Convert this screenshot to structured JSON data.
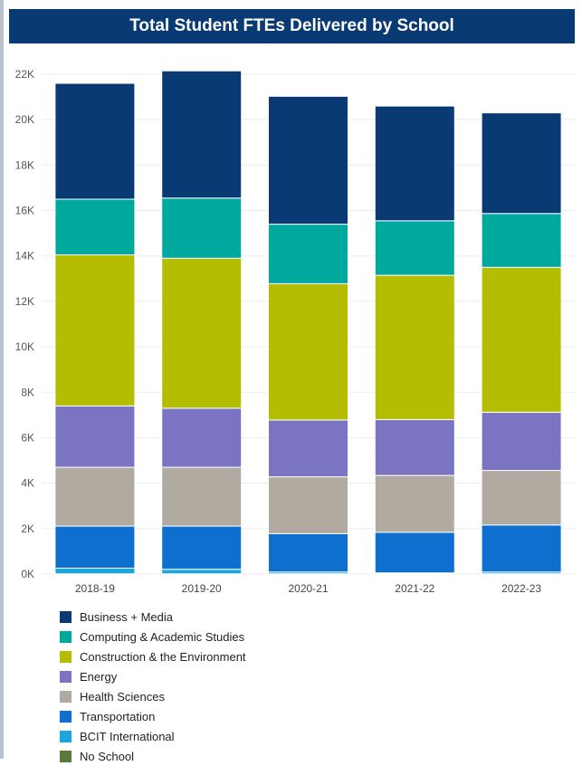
{
  "header": {
    "title": "Total Student FTEs Delivered by School"
  },
  "chart_data": {
    "type": "bar",
    "stacked": true,
    "categories": [
      "2018-19",
      "2019-20",
      "2020-21",
      "2021-22",
      "2022-23"
    ],
    "ylim": [
      0,
      22000
    ],
    "y_ticks": [
      0,
      2000,
      4000,
      6000,
      8000,
      10000,
      12000,
      14000,
      16000,
      18000,
      20000,
      22000
    ],
    "y_tick_labels": [
      "0K",
      "2K",
      "4K",
      "6K",
      "8K",
      "10K",
      "12K",
      "14K",
      "16K",
      "18K",
      "20K",
      "22K"
    ],
    "grid": true,
    "legend_position": "bottom",
    "series": [
      {
        "name": "No School",
        "color": "#5a7a3a",
        "values": [
          10,
          10,
          10,
          10,
          10
        ]
      },
      {
        "name": "BCIT International",
        "color": "#1aa7de",
        "values": [
          250,
          200,
          80,
          40,
          80
        ]
      },
      {
        "name": "Transportation",
        "color": "#0f6fce",
        "values": [
          1850,
          1900,
          1690,
          1790,
          2070
        ]
      },
      {
        "name": "Health Sciences",
        "color": "#b0aaa0",
        "values": [
          2590,
          2590,
          2500,
          2500,
          2400
        ]
      },
      {
        "name": "Energy",
        "color": "#7b74c2",
        "values": [
          2700,
          2600,
          2500,
          2460,
          2560
        ]
      },
      {
        "name": "Construction & the Environment",
        "color": "#b5bd00",
        "values": [
          6650,
          6600,
          6000,
          6350,
          6380
        ]
      },
      {
        "name": "Computing & Academic Studies",
        "color": "#00a99d",
        "values": [
          2450,
          2650,
          2620,
          2400,
          2370
        ]
      },
      {
        "name": "Business + Media",
        "color": "#0a3a73",
        "values": [
          5100,
          5600,
          5630,
          5050,
          4430
        ]
      }
    ]
  }
}
